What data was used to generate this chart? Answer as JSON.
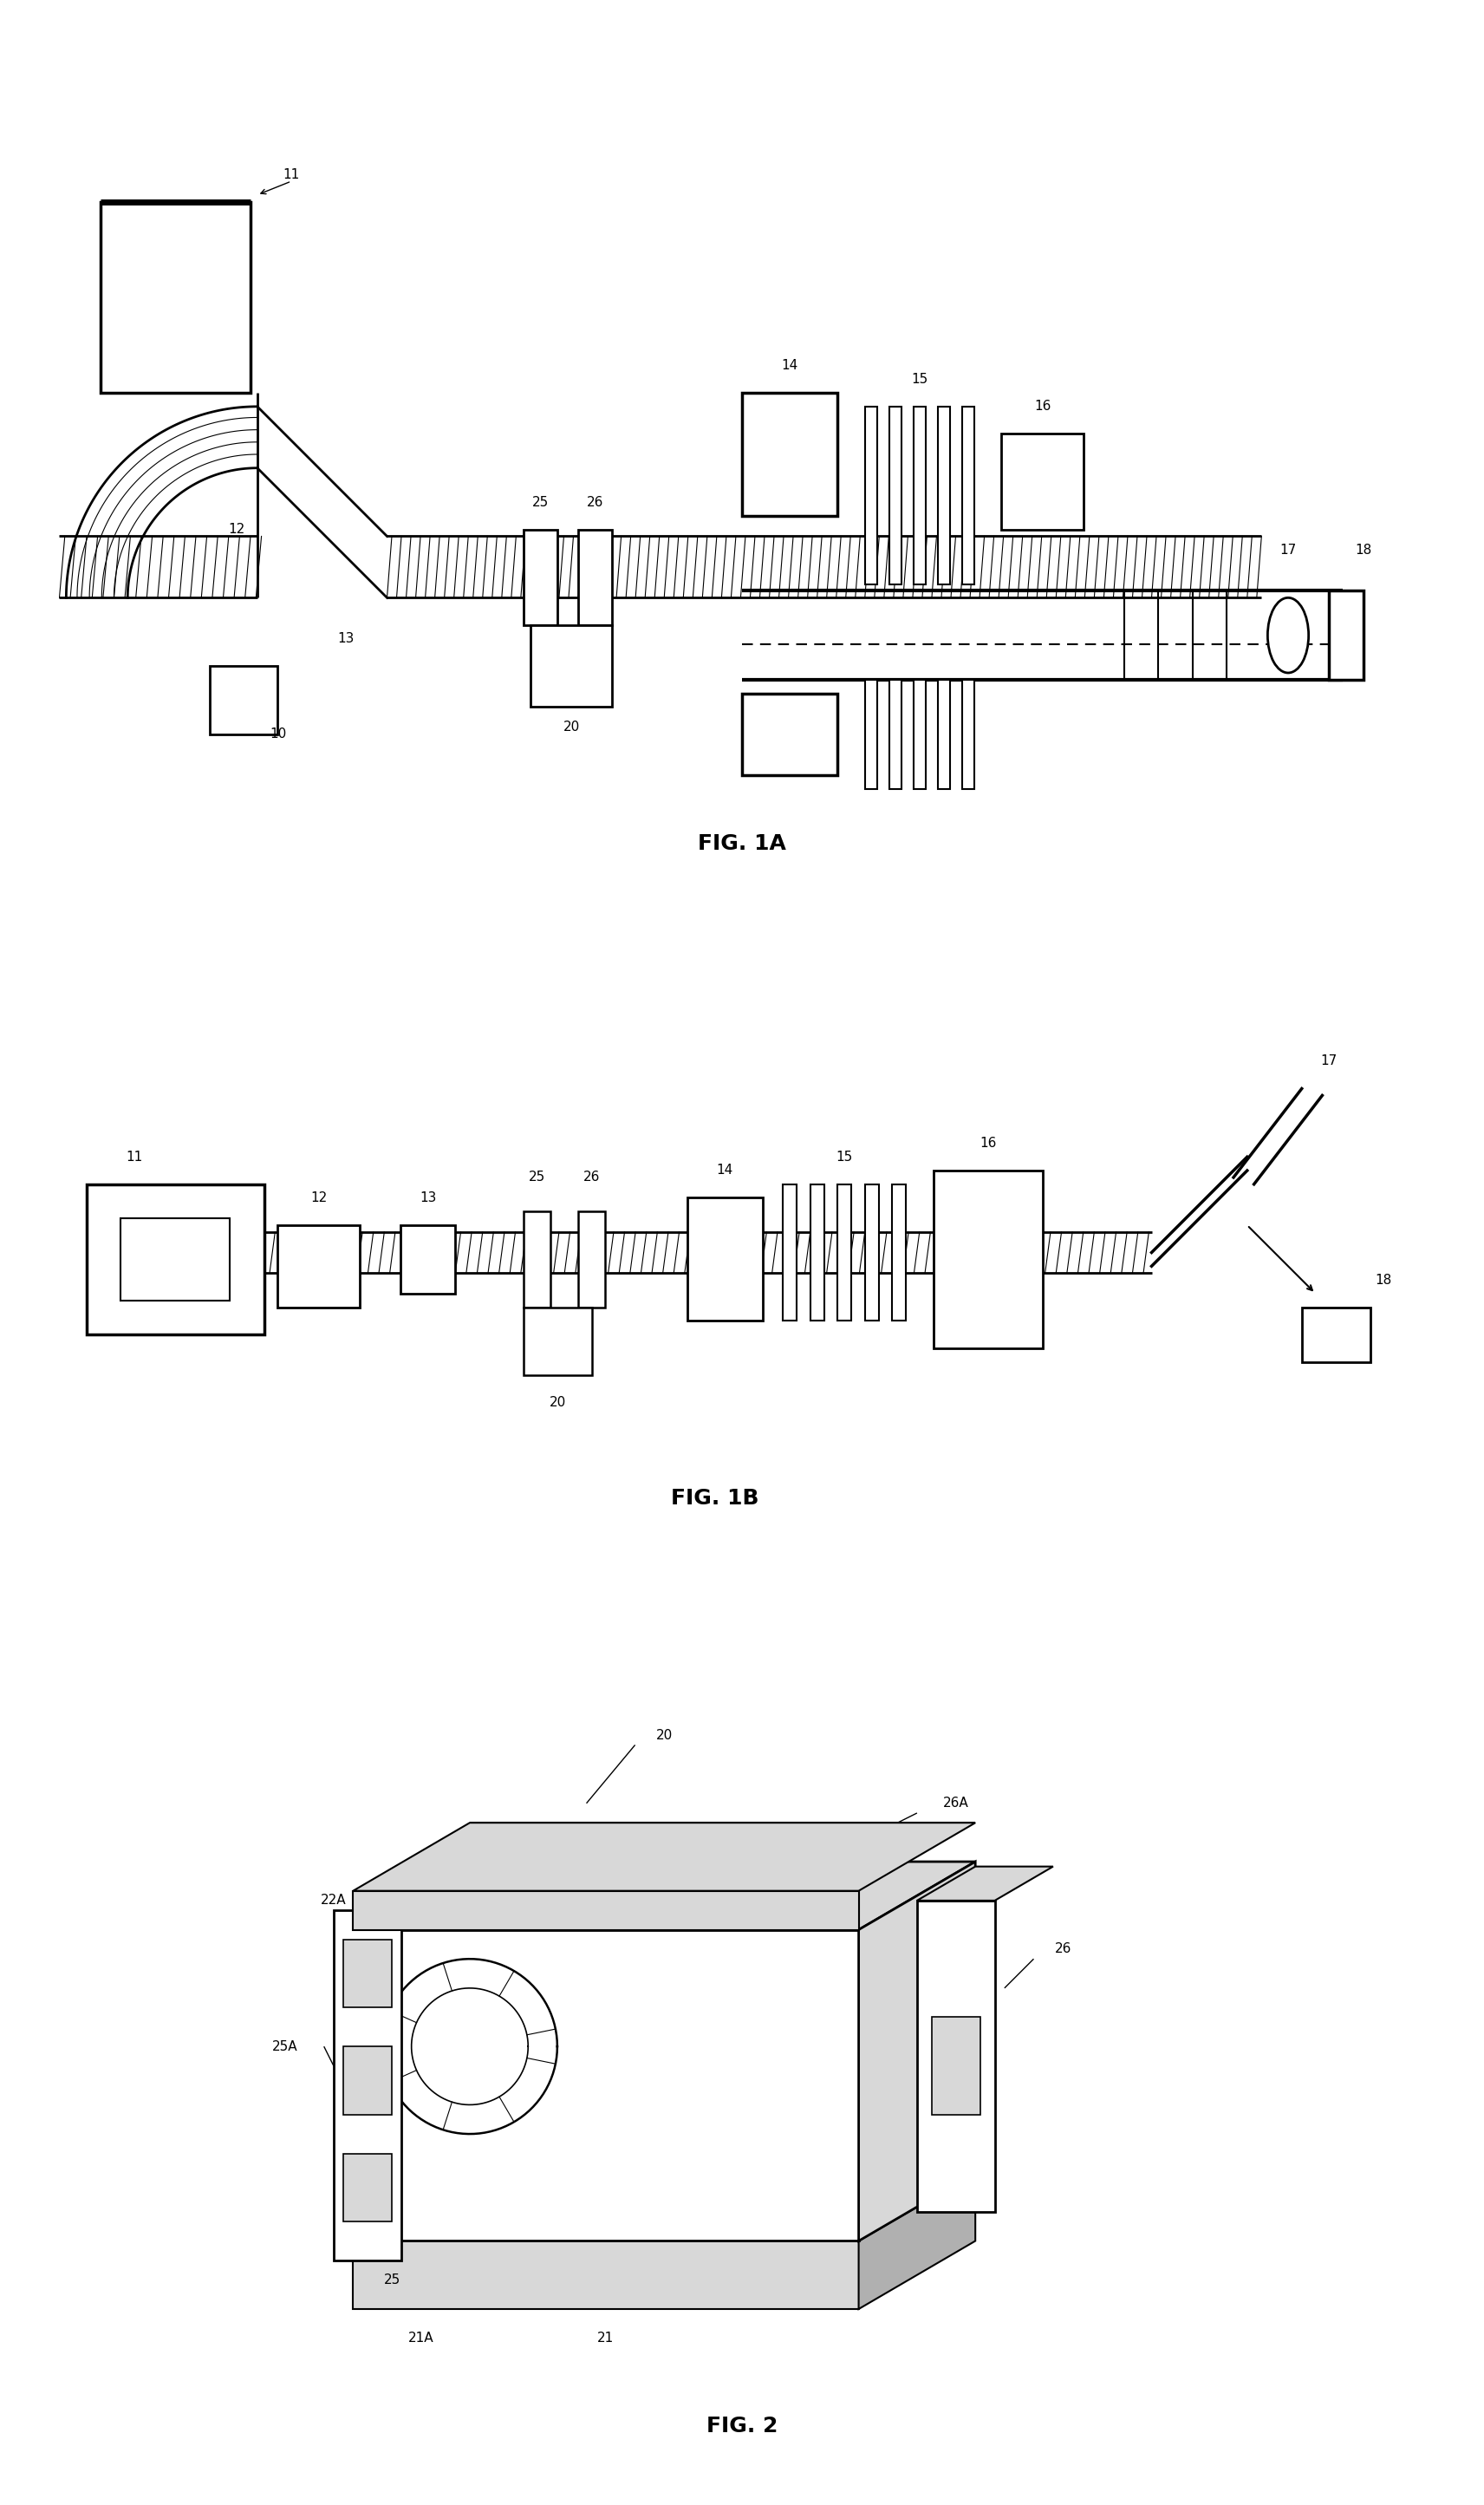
{
  "bg_color": "#ffffff",
  "lc": "#000000",
  "fig_width": 17.12,
  "fig_height": 28.89,
  "fig1a_title": "FIG. 1A",
  "fig1b_title": "FIG. 1B",
  "fig2_title": "FIG. 2",
  "gray_light": "#d8d8d8",
  "gray_mid": "#b0b0b0",
  "gray_dark": "#888888"
}
